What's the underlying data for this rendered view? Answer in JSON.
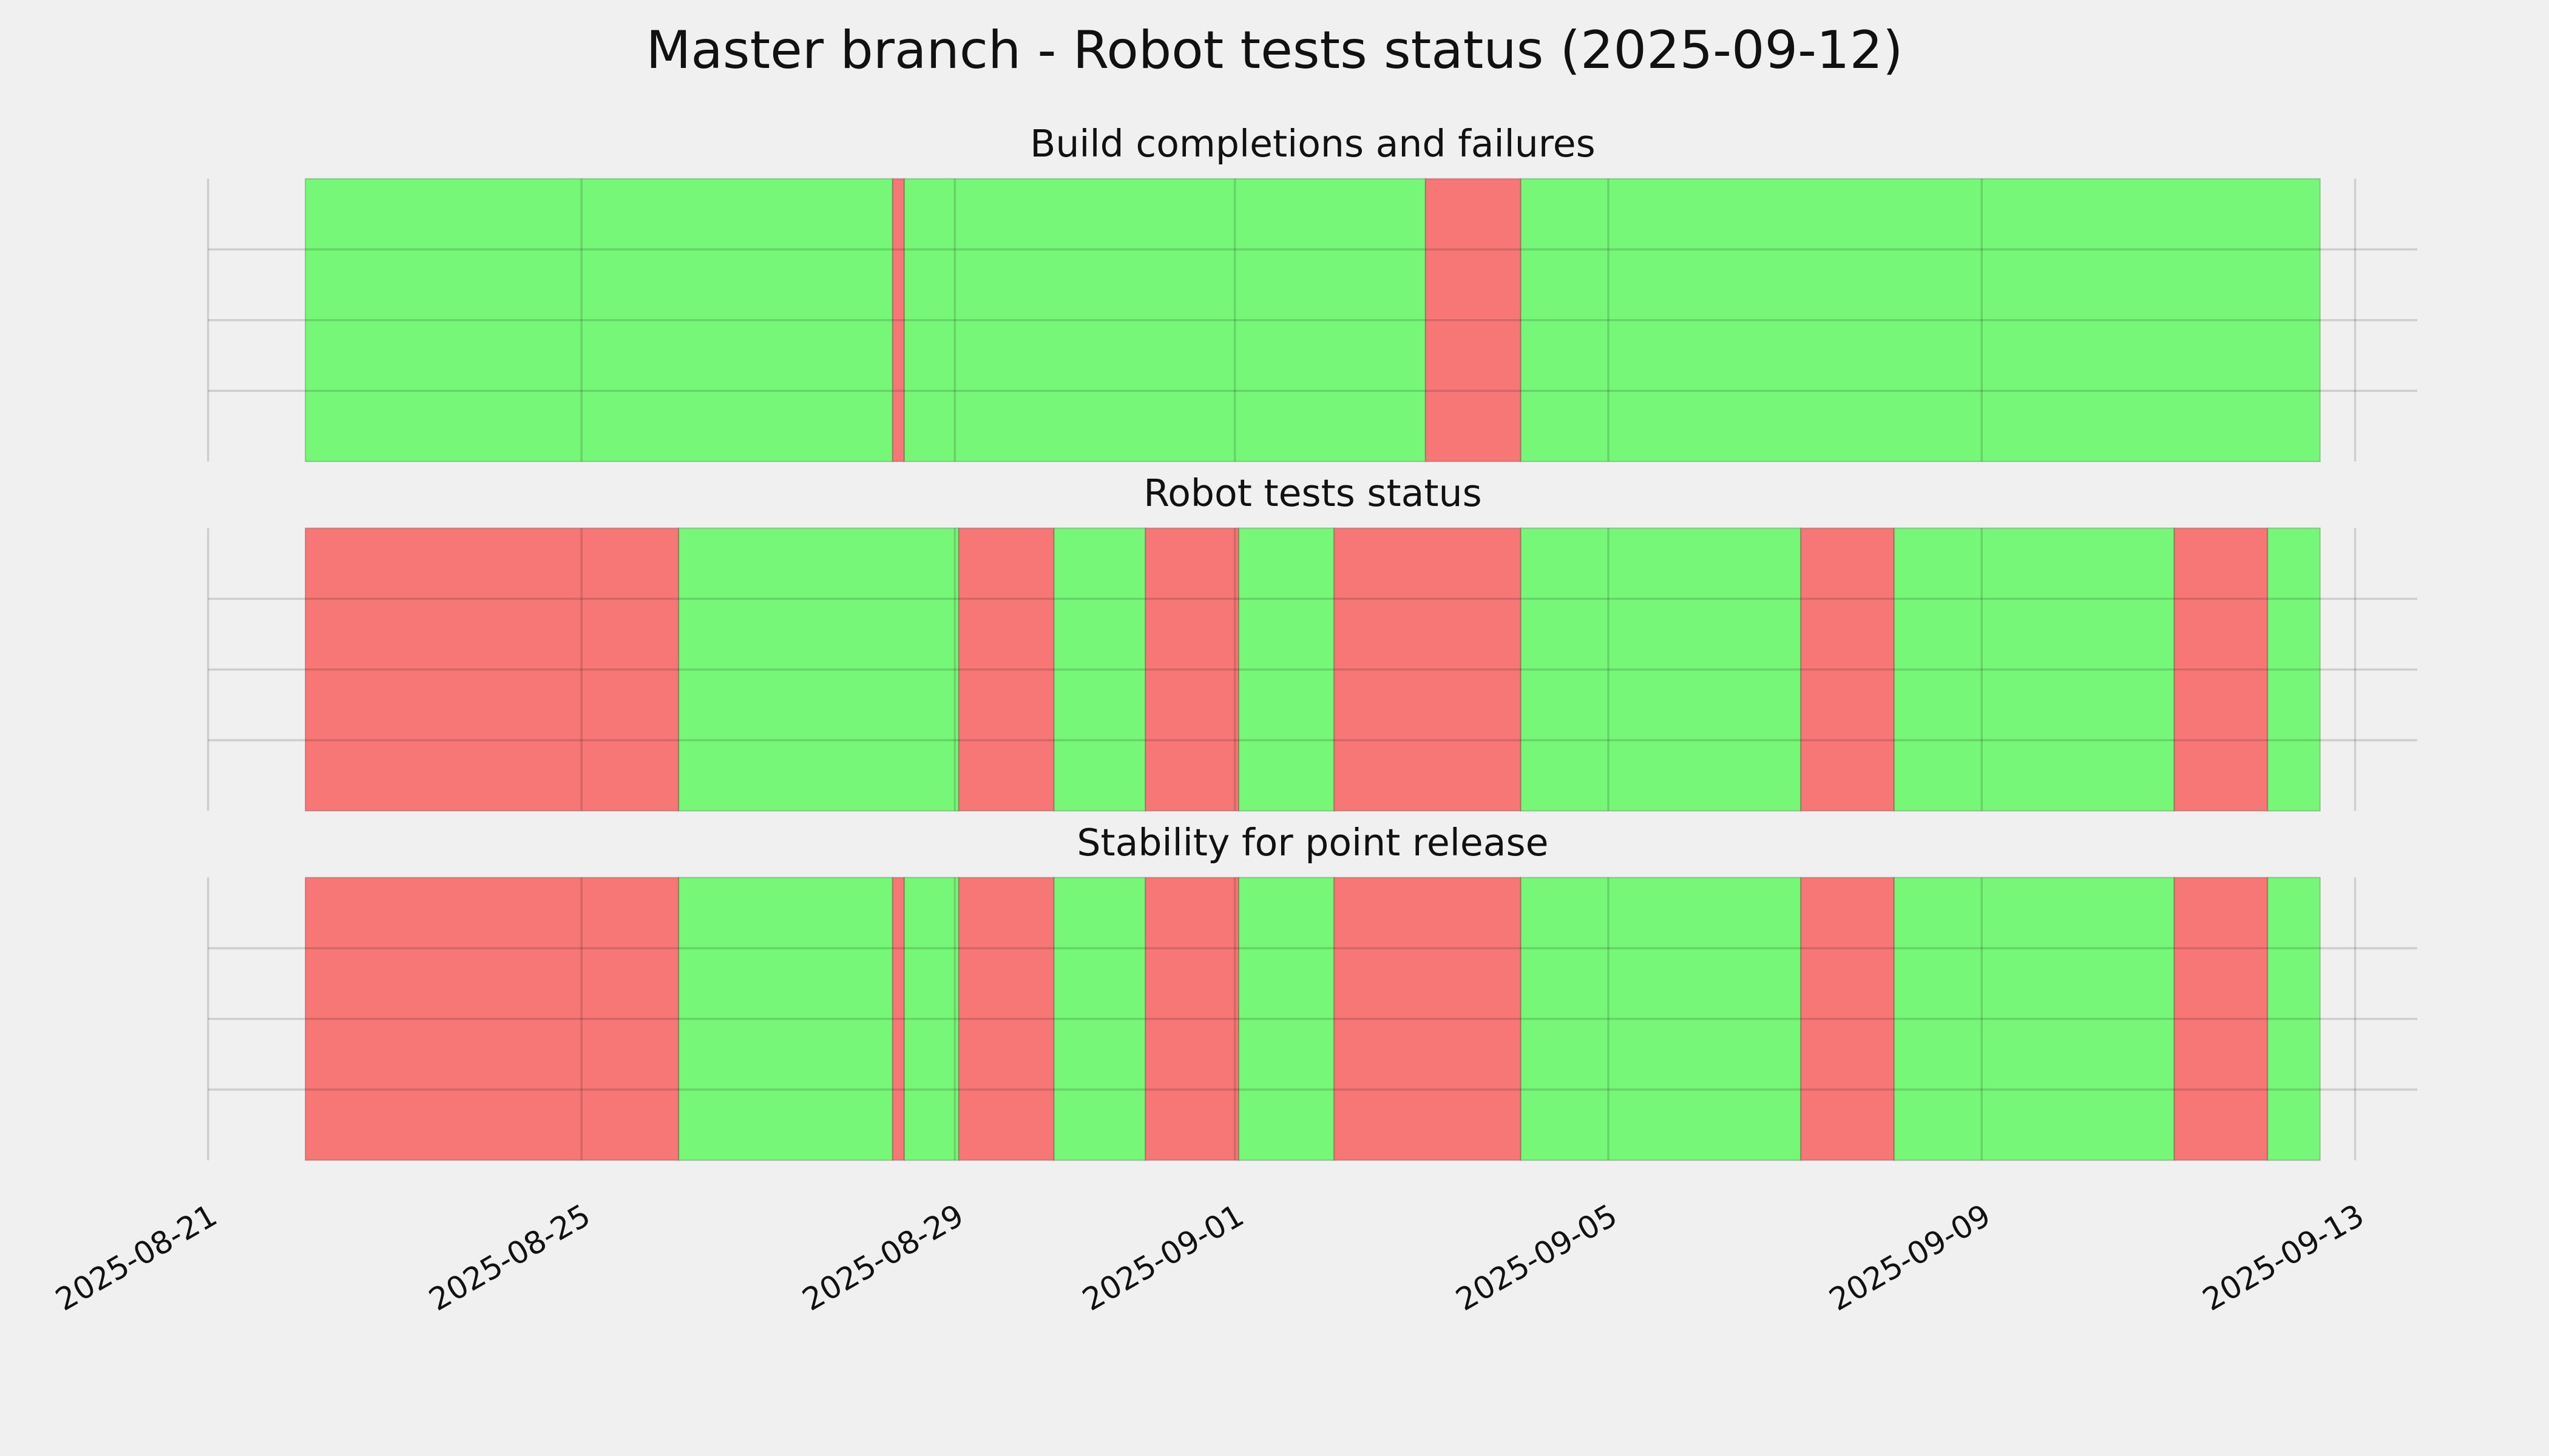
{
  "chart_data": {
    "type": "timeline",
    "title": "Master branch - Robot tests status (2025-09-12)",
    "xlim": [
      "2025-08-21",
      "2025-09-13T16:00:00Z"
    ],
    "xticks": [
      "2025-08-21",
      "2025-08-25",
      "2025-08-29",
      "2025-09-01",
      "2025-09-05",
      "2025-09-09",
      "2025-09-13"
    ],
    "grid": true,
    "panels": [
      {
        "title": "Build completions and failures",
        "segments": [
          {
            "start": "2025-08-22T01:00:00Z",
            "end": "2025-08-28T08:00:00Z",
            "color": "#77f777"
          },
          {
            "start": "2025-08-28T08:00:00Z",
            "end": "2025-08-28T11:00:00Z",
            "color": "#f77777"
          },
          {
            "start": "2025-08-28T11:00:00Z",
            "end": "2025-09-03T01:00:00Z",
            "color": "#77f777"
          },
          {
            "start": "2025-09-03T01:00:00Z",
            "end": "2025-09-04T01:30:00Z",
            "color": "#f77777"
          },
          {
            "start": "2025-09-04T01:30:00Z",
            "end": "2025-09-12T15:00:00Z",
            "color": "#77f777"
          }
        ]
      },
      {
        "title": "Robot tests status",
        "segments": [
          {
            "start": "2025-08-22T01:00:00Z",
            "end": "2025-08-26T01:00:00Z",
            "color": "#f77777"
          },
          {
            "start": "2025-08-26T01:00:00Z",
            "end": "2025-08-29T01:00:00Z",
            "color": "#77f777"
          },
          {
            "start": "2025-08-29T01:00:00Z",
            "end": "2025-08-30T01:30:00Z",
            "color": "#f77777"
          },
          {
            "start": "2025-08-30T01:30:00Z",
            "end": "2025-08-31T01:00:00Z",
            "color": "#77f777"
          },
          {
            "start": "2025-08-31T01:00:00Z",
            "end": "2025-09-01T01:00:00Z",
            "color": "#f77777"
          },
          {
            "start": "2025-09-01T01:00:00Z",
            "end": "2025-09-02T01:30:00Z",
            "color": "#77f777"
          },
          {
            "start": "2025-09-02T01:30:00Z",
            "end": "2025-09-04T01:30:00Z",
            "color": "#f77777"
          },
          {
            "start": "2025-09-04T01:30:00Z",
            "end": "2025-09-07T01:30:00Z",
            "color": "#77f777"
          },
          {
            "start": "2025-09-07T01:30:00Z",
            "end": "2025-09-08T01:30:00Z",
            "color": "#f77777"
          },
          {
            "start": "2025-09-08T01:30:00Z",
            "end": "2025-09-11T01:30:00Z",
            "color": "#77f777"
          },
          {
            "start": "2025-09-11T01:30:00Z",
            "end": "2025-09-12T01:30:00Z",
            "color": "#f77777"
          },
          {
            "start": "2025-09-12T01:30:00Z",
            "end": "2025-09-12T15:00:00Z",
            "color": "#77f777"
          }
        ]
      },
      {
        "title": "Stability for point release",
        "segments": [
          {
            "start": "2025-08-22T01:00:00Z",
            "end": "2025-08-26T01:00:00Z",
            "color": "#f77777"
          },
          {
            "start": "2025-08-26T01:00:00Z",
            "end": "2025-08-28T08:00:00Z",
            "color": "#77f777"
          },
          {
            "start": "2025-08-28T08:00:00Z",
            "end": "2025-08-28T11:00:00Z",
            "color": "#f77777"
          },
          {
            "start": "2025-08-28T11:00:00Z",
            "end": "2025-08-29T01:00:00Z",
            "color": "#77f777"
          },
          {
            "start": "2025-08-29T01:00:00Z",
            "end": "2025-08-30T01:30:00Z",
            "color": "#f77777"
          },
          {
            "start": "2025-08-30T01:30:00Z",
            "end": "2025-08-31T01:00:00Z",
            "color": "#77f777"
          },
          {
            "start": "2025-08-31T01:00:00Z",
            "end": "2025-09-01T01:00:00Z",
            "color": "#f77777"
          },
          {
            "start": "2025-09-01T01:00:00Z",
            "end": "2025-09-02T01:30:00Z",
            "color": "#77f777"
          },
          {
            "start": "2025-09-02T01:30:00Z",
            "end": "2025-09-04T01:30:00Z",
            "color": "#f77777"
          },
          {
            "start": "2025-09-04T01:30:00Z",
            "end": "2025-09-07T01:30:00Z",
            "color": "#77f777"
          },
          {
            "start": "2025-09-07T01:30:00Z",
            "end": "2025-09-08T01:30:00Z",
            "color": "#f77777"
          },
          {
            "start": "2025-09-08T01:30:00Z",
            "end": "2025-09-11T01:30:00Z",
            "color": "#77f777"
          },
          {
            "start": "2025-09-11T01:30:00Z",
            "end": "2025-09-12T01:30:00Z",
            "color": "#f77777"
          },
          {
            "start": "2025-09-12T01:30:00Z",
            "end": "2025-09-12T15:00:00Z",
            "color": "#77f777"
          }
        ]
      }
    ]
  }
}
